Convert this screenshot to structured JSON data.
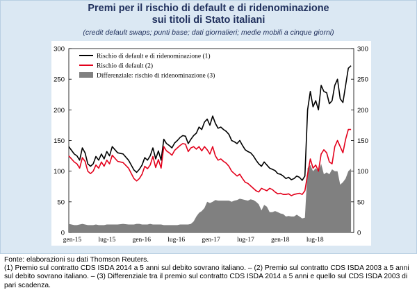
{
  "title_line1": "Premi per il rischio di default e di ridenominazione",
  "title_line2": "sui titoli di Stato italiani",
  "subtitle": "(credit default swaps; punti base; dati giornalieri; medie mobili a cinque giorni)",
  "notes": {
    "source": "Fonte: elaborazioni su dati Thomson Reuters.",
    "footnotes": "(1) Premio sul contratto CDS ISDA 2014 a 5 anni sul debito sovrano italiano. – (2) Premio sul contratto CDS ISDA 2003 a 5 anni sul debito sovrano italiano. – (3) Differenziale tra il premio sul contratto CDS ISDA 2014 a 5 anni e quello sul CDS ISDA 2003 di pari scadenza."
  },
  "colors": {
    "series1": "#000000",
    "series2": "#e3001b",
    "series3": "#808080",
    "background": "#dbe8f3",
    "title": "#1f2f5c"
  },
  "chart_data": {
    "type": "line",
    "ylim": [
      0,
      300
    ],
    "yticks": [
      0,
      50,
      100,
      150,
      200,
      250,
      300
    ],
    "xlim": [
      0,
      1.05
    ],
    "xtick_labels": [
      "gen-15",
      "lug-15",
      "gen-16",
      "lug-16",
      "gen-17",
      "lug-17",
      "gen-18",
      "lug-18"
    ],
    "legend_position": "top-left",
    "series": [
      {
        "name": "Rischio di default e di ridenominazione (1)",
        "kind": "line",
        "x": [
          0.0,
          0.01,
          0.02,
          0.03,
          0.04,
          0.05,
          0.06,
          0.07,
          0.08,
          0.09,
          0.1,
          0.11,
          0.12,
          0.13,
          0.14,
          0.15,
          0.16,
          0.18,
          0.2,
          0.22,
          0.24,
          0.25,
          0.26,
          0.27,
          0.28,
          0.29,
          0.3,
          0.31,
          0.32,
          0.33,
          0.34,
          0.35,
          0.36,
          0.37,
          0.38,
          0.39,
          0.4,
          0.41,
          0.42,
          0.43,
          0.44,
          0.45,
          0.46,
          0.47,
          0.48,
          0.49,
          0.5,
          0.51,
          0.52,
          0.53,
          0.54,
          0.55,
          0.56,
          0.57,
          0.58,
          0.59,
          0.6,
          0.61,
          0.62,
          0.63,
          0.64,
          0.65,
          0.66,
          0.67,
          0.68,
          0.69,
          0.7,
          0.71,
          0.72,
          0.73,
          0.74,
          0.75,
          0.76,
          0.77,
          0.78,
          0.79,
          0.8,
          0.81,
          0.82,
          0.83,
          0.84,
          0.85,
          0.86,
          0.87,
          0.88,
          0.89,
          0.9,
          0.91,
          0.92,
          0.93,
          0.94,
          0.95,
          0.96,
          0.97,
          0.98,
          0.99,
          1.0,
          1.01,
          1.02,
          1.03,
          1.04
        ],
        "y": [
          140,
          134,
          128,
          125,
          118,
          138,
          130,
          112,
          108,
          112,
          124,
          118,
          128,
          120,
          132,
          125,
          140,
          130,
          128,
          118,
          102,
          98,
          103,
          110,
          122,
          118,
          125,
          138,
          120,
          133,
          118,
          152,
          145,
          142,
          138,
          146,
          150,
          155,
          158,
          157,
          145,
          152,
          158,
          162,
          172,
          168,
          180,
          185,
          175,
          190,
          178,
          170,
          172,
          168,
          165,
          160,
          150,
          148,
          145,
          150,
          142,
          135,
          132,
          130,
          125,
          118,
          112,
          108,
          115,
          110,
          105,
          103,
          101,
          96,
          95,
          92,
          88,
          90,
          86,
          88,
          92,
          90,
          85,
          92,
          200,
          230,
          205,
          215,
          200,
          240,
          230,
          228,
          210,
          215,
          240,
          250,
          218,
          212,
          240,
          268,
          272
        ]
      },
      {
        "name": "Rischio di default (2)",
        "kind": "line",
        "x": [
          0.0,
          0.01,
          0.02,
          0.03,
          0.04,
          0.05,
          0.06,
          0.07,
          0.08,
          0.09,
          0.1,
          0.11,
          0.12,
          0.13,
          0.14,
          0.15,
          0.16,
          0.18,
          0.2,
          0.22,
          0.24,
          0.25,
          0.26,
          0.27,
          0.28,
          0.29,
          0.3,
          0.31,
          0.32,
          0.33,
          0.34,
          0.35,
          0.36,
          0.37,
          0.38,
          0.39,
          0.4,
          0.41,
          0.42,
          0.43,
          0.44,
          0.45,
          0.46,
          0.47,
          0.48,
          0.49,
          0.5,
          0.51,
          0.52,
          0.53,
          0.54,
          0.55,
          0.56,
          0.57,
          0.58,
          0.59,
          0.6,
          0.61,
          0.62,
          0.63,
          0.64,
          0.65,
          0.66,
          0.67,
          0.68,
          0.69,
          0.7,
          0.71,
          0.72,
          0.73,
          0.74,
          0.75,
          0.76,
          0.77,
          0.78,
          0.79,
          0.8,
          0.81,
          0.82,
          0.83,
          0.84,
          0.85,
          0.86,
          0.87,
          0.88,
          0.89,
          0.9,
          0.91,
          0.92,
          0.93,
          0.94,
          0.95,
          0.96,
          0.97,
          0.98,
          0.99,
          1.0,
          1.01,
          1.02,
          1.03,
          1.04
        ],
        "y": [
          125,
          120,
          115,
          112,
          105,
          122,
          116,
          100,
          96,
          100,
          110,
          105,
          115,
          108,
          118,
          112,
          126,
          116,
          114,
          105,
          88,
          84,
          88,
          95,
          108,
          104,
          110,
          124,
          106,
          119,
          105,
          140,
          133,
          130,
          126,
          134,
          138,
          142,
          145,
          144,
          132,
          138,
          140,
          136,
          140,
          133,
          140,
          135,
          128,
          140,
          125,
          118,
          120,
          116,
          113,
          108,
          100,
          96,
          92,
          95,
          88,
          82,
          80,
          76,
          72,
          68,
          66,
          72,
          70,
          68,
          72,
          70,
          66,
          63,
          64,
          62,
          62,
          63,
          60,
          62,
          63,
          64,
          62,
          68,
          95,
          120,
          105,
          110,
          100,
          128,
          135,
          130,
          115,
          112,
          140,
          150,
          140,
          130,
          152,
          168,
          168
        ]
      },
      {
        "name": "Differenziale: rischio di ridenominazione (3)",
        "kind": "area",
        "x": [
          0.0,
          0.01,
          0.02,
          0.03,
          0.04,
          0.05,
          0.06,
          0.07,
          0.08,
          0.09,
          0.1,
          0.11,
          0.12,
          0.13,
          0.14,
          0.15,
          0.16,
          0.18,
          0.2,
          0.22,
          0.24,
          0.25,
          0.26,
          0.27,
          0.28,
          0.29,
          0.3,
          0.31,
          0.32,
          0.33,
          0.34,
          0.35,
          0.36,
          0.37,
          0.38,
          0.39,
          0.4,
          0.41,
          0.42,
          0.43,
          0.44,
          0.45,
          0.46,
          0.47,
          0.48,
          0.49,
          0.5,
          0.51,
          0.52,
          0.53,
          0.54,
          0.55,
          0.56,
          0.57,
          0.58,
          0.59,
          0.6,
          0.61,
          0.62,
          0.63,
          0.64,
          0.65,
          0.66,
          0.67,
          0.68,
          0.69,
          0.7,
          0.71,
          0.72,
          0.73,
          0.74,
          0.75,
          0.76,
          0.77,
          0.78,
          0.79,
          0.8,
          0.81,
          0.82,
          0.83,
          0.84,
          0.85,
          0.86,
          0.87,
          0.88,
          0.89,
          0.9,
          0.91,
          0.92,
          0.93,
          0.94,
          0.95,
          0.96,
          0.97,
          0.98,
          0.99,
          1.0,
          1.01,
          1.02,
          1.03,
          1.04
        ],
        "y": [
          14,
          13,
          12,
          12,
          13,
          14,
          13,
          12,
          12,
          12,
          13,
          12,
          12,
          12,
          13,
          13,
          13,
          13,
          14,
          13,
          13,
          14,
          14,
          13,
          13,
          13,
          14,
          13,
          13,
          13,
          13,
          12,
          12,
          12,
          12,
          12,
          12,
          13,
          13,
          13,
          13,
          14,
          18,
          26,
          32,
          35,
          40,
          50,
          48,
          50,
          53,
          52,
          52,
          52,
          52,
          52,
          50,
          52,
          53,
          55,
          54,
          53,
          52,
          54,
          53,
          50,
          46,
          36,
          45,
          42,
          33,
          33,
          35,
          33,
          31,
          30,
          26,
          27,
          26,
          26,
          29,
          26,
          23,
          24,
          105,
          110,
          100,
          105,
          100,
          112,
          95,
          98,
          95,
          103,
          100,
          100,
          78,
          82,
          88,
          100,
          104
        ]
      }
    ]
  }
}
